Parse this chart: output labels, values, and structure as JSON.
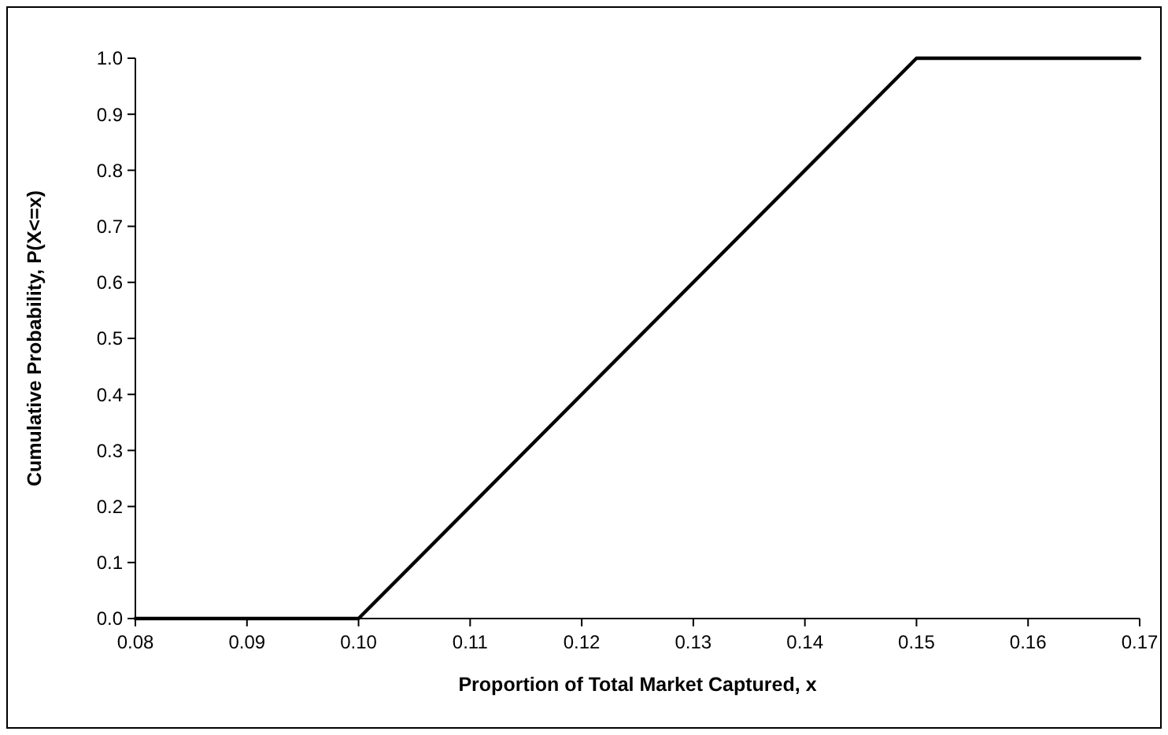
{
  "chart_data": {
    "type": "line",
    "xlabel": "Proportion of Total Market Captured, x",
    "ylabel": "Cumulative Probability, P(X<=x)",
    "x": [
      0.08,
      0.1,
      0.15,
      0.17
    ],
    "series": [
      {
        "color": "#000000",
        "values": [
          0,
          0,
          1,
          1
        ]
      }
    ],
    "xlim": [
      0.08,
      0.17
    ],
    "xticks": [
      0.08,
      0.09,
      {
        "value": 0.1,
        "label": "0.10"
      },
      0.11,
      0.12,
      0.13,
      0.14,
      0.15,
      0.16,
      0.17
    ],
    "ylim": [
      0,
      1
    ],
    "yticks": [
      {
        "value": 0,
        "label": "0.0"
      },
      0.1,
      0.2,
      0.3,
      0.4,
      0.5,
      0.6,
      0.7,
      0.8,
      0.9,
      {
        "value": 1,
        "label": "1.0"
      }
    ],
    "grid": false,
    "marker": "none",
    "line_style": "solid"
  }
}
